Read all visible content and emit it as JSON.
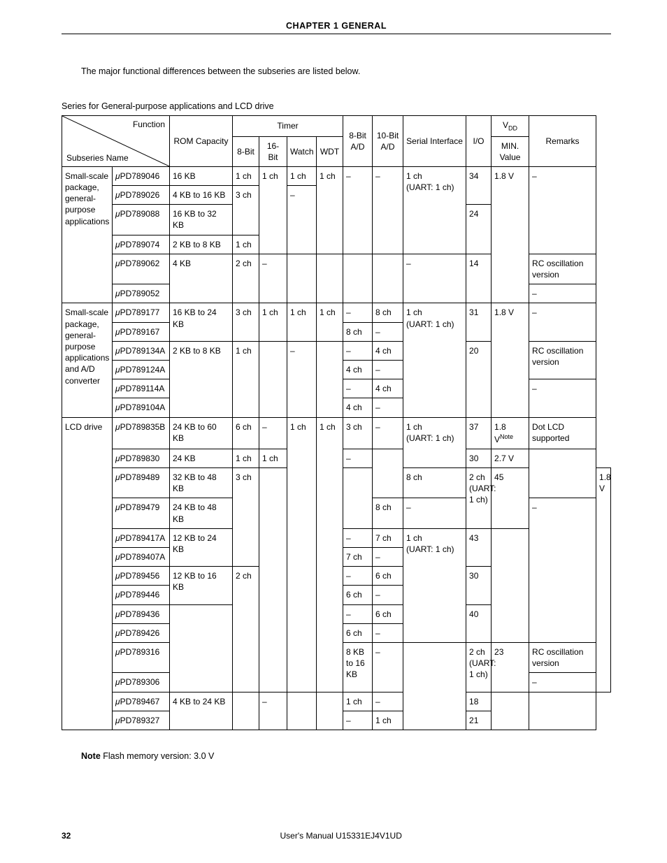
{
  "chapter_title": "CHAPTER  1  GENERAL",
  "intro_text": "The major functional differences between the subseries are listed below.",
  "series_caption": "Series for General-purpose applications and LCD drive",
  "diag": {
    "function": "Function",
    "subseries": "Subseries Name"
  },
  "headers": {
    "rom": "ROM Capacity",
    "timer": "Timer",
    "t8": "8-Bit",
    "t16": "16-Bit",
    "watch": "Watch",
    "wdt": "WDT",
    "ad8": "8-Bit A/D",
    "ad10": "10-Bit A/D",
    "serial": "Serial Interface",
    "io": "I/O",
    "vdd": "V",
    "vdd_sub": "DD",
    "vdd_sub2": "MIN. Value",
    "remarks": "Remarks"
  },
  "colwidths": {
    "cat": 72,
    "part": 82,
    "rom": 90,
    "t8": 38,
    "t16": 40,
    "watch": 42,
    "wdt": 38,
    "ad8": 42,
    "ad10": 44,
    "serial": 90,
    "io": 36,
    "vdd": 54,
    "remarks": 96
  },
  "categories": {
    "small_scale": "Small-scale package, general-purpose applications",
    "small_scale_ad": "Small-scale package, general-purpose applications and A/D converter",
    "lcd": "LCD drive"
  },
  "parts_prefix": "PD",
  "mu": "μ",
  "dash": "–",
  "rows": {
    "r789046": {
      "part": "789046",
      "rom": "16 KB",
      "t8": "1 ch",
      "t16": "1 ch",
      "watch": "1 ch",
      "wdt": "1 ch",
      "serial": "1 ch",
      "uart": "(UART: 1 ch)",
      "io": "34",
      "vdd": "1.8 V"
    },
    "r789026": {
      "part": "789026",
      "rom": "4 KB to 16 KB"
    },
    "r789088": {
      "part": "789088",
      "rom": "16 KB to 32 KB",
      "t8": "3 ch",
      "io": "24"
    },
    "r789074": {
      "part": "789074",
      "rom": "2 KB to 8 KB",
      "t8": "1 ch"
    },
    "r789062": {
      "part": "789062",
      "rom": "4 KB",
      "t8": "2 ch",
      "io": "14",
      "remarks": "RC oscillation version"
    },
    "r789052": {
      "part": "789052"
    },
    "r789177": {
      "part": "789177",
      "rom": "16 KB to 24 KB",
      "t8": "3 ch",
      "t16": "1 ch",
      "watch": "1 ch",
      "wdt": "1 ch",
      "ad10": "8 ch",
      "serial": "1 ch",
      "uart": "(UART: 1 ch)",
      "io": "31",
      "vdd": "1.8 V"
    },
    "r789167": {
      "part": "789167",
      "ad8": "8 ch"
    },
    "r789134A": {
      "part": "789134A",
      "rom": "2 KB to 8 KB",
      "t8": "1 ch",
      "ad10": "4 ch",
      "io": "20",
      "remarks": "RC oscillation version"
    },
    "r789124A": {
      "part": "789124A",
      "ad8": "4 ch"
    },
    "r789114A": {
      "part": "789114A",
      "ad10": "4 ch"
    },
    "r789104A": {
      "part": "789104A",
      "ad8": "4 ch"
    },
    "r789835B": {
      "part": "789835B",
      "rom": "24 KB to 60 KB",
      "t8": "6 ch",
      "watch": "1 ch",
      "wdt": "1 ch",
      "ad8": "3 ch",
      "serial": "1 ch",
      "uart": "(UART: 1 ch)",
      "io": "37",
      "vdd": "1.8 V",
      "vdd_note": "Note",
      "remarks": "Dot LCD supported"
    },
    "r789830": {
      "part": "789830",
      "rom": "24 KB",
      "t8": "1 ch",
      "t16": "1 ch",
      "io": "30",
      "vdd": "2.7 V"
    },
    "r789489": {
      "part": "789489",
      "rom": "32 KB to 48 KB",
      "t8": "3 ch",
      "ad10": "8 ch",
      "serial": "2 ch",
      "uart": "(UART: 1 ch)",
      "io": "45",
      "vdd": "1.8 V"
    },
    "r789479": {
      "part": "789479",
      "rom": "24 KB to 48 KB",
      "ad8": "8 ch"
    },
    "r789417A": {
      "part": "789417A",
      "rom": "12 KB to 24 KB",
      "ad10": "7 ch",
      "serial": "1 ch",
      "uart": "(UART: 1 ch)",
      "io": "43"
    },
    "r789407A": {
      "part": "789407A",
      "ad8": "7 ch"
    },
    "r789456": {
      "part": "789456",
      "rom": "12 KB to 16 KB",
      "t8": "2 ch",
      "ad10": "6 ch",
      "io": "30"
    },
    "r789446": {
      "part": "789446",
      "ad8": "6 ch"
    },
    "r789436": {
      "part": "789436",
      "ad10": "6 ch",
      "io": "40"
    },
    "r789426": {
      "part": "789426",
      "ad8": "6 ch"
    },
    "r789316": {
      "part": "789316",
      "rom": "8 KB to 16 KB",
      "serial": "2 ch",
      "uart": "(UART: 1 ch)",
      "io": "23",
      "remarks": "RC oscillation version"
    },
    "r789306": {
      "part": "789306"
    },
    "r789467": {
      "part": "789467",
      "rom": "4 KB to 24 KB",
      "ad8": "1 ch",
      "io": "18"
    },
    "r789327": {
      "part": "789327",
      "serial": "1 ch",
      "io": "21"
    }
  },
  "note": {
    "label": "Note",
    "text": "  Flash memory version: 3.0 V"
  },
  "footer": {
    "page": "32",
    "manual": "User's Manual  U15331EJ4V1UD"
  }
}
